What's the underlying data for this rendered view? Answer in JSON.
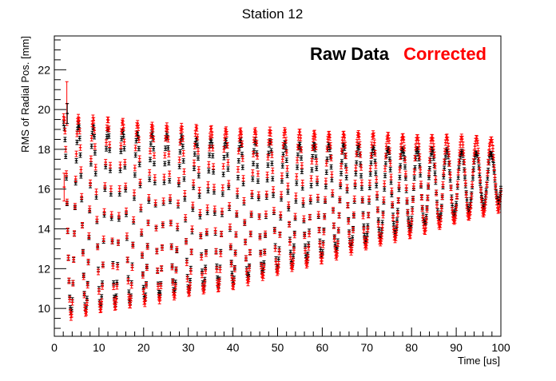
{
  "chart_data": {
    "type": "scatter",
    "title": "Station 12",
    "xlabel": "Time [us]",
    "ylabel": "RMS of Radial Pos. [mm]",
    "xlim": [
      0,
      100
    ],
    "ylim": [
      8.6,
      23.7
    ],
    "x_ticks": [
      0,
      10,
      20,
      30,
      40,
      50,
      60,
      70,
      80,
      90,
      100
    ],
    "y_ticks": [
      10,
      12,
      14,
      16,
      18,
      20,
      22
    ],
    "grid": false,
    "legend_position": "top-right",
    "error_bars": true,
    "series": [
      {
        "name": "Raw Data",
        "color": "#000000",
        "model": {
          "start": 2.1,
          "step": 0.149,
          "period": 3.3,
          "envelope_high": [
            [
              2,
              19.3
            ],
            [
              30,
              18.6
            ],
            [
              100,
              17.8
            ]
          ],
          "envelope_low": [
            [
              2,
              9.7
            ],
            [
              40,
              11.3
            ],
            [
              100,
              15.4
            ]
          ],
          "error": 0.11
        }
      },
      {
        "name": "Corrected",
        "color": "#ff0000",
        "model": {
          "start": 2.1,
          "step": 0.149,
          "period": 3.3,
          "envelope_high": [
            [
              2,
              19.7
            ],
            [
              30,
              19.1
            ],
            [
              100,
              18.5
            ]
          ],
          "envelope_low": [
            [
              2,
              9.5
            ],
            [
              40,
              11.1
            ],
            [
              100,
              15.0
            ]
          ],
          "error": 0.14
        }
      }
    ],
    "outliers": [
      {
        "series": "Corrected",
        "x": 2.2,
        "y": 16.1,
        "error": 0.7
      },
      {
        "series": "Corrected",
        "x": 2.8,
        "y": 20.3,
        "error": 1.1
      },
      {
        "series": "Raw Data",
        "x": 2.9,
        "y": 19.8,
        "error": 0.5
      }
    ]
  }
}
